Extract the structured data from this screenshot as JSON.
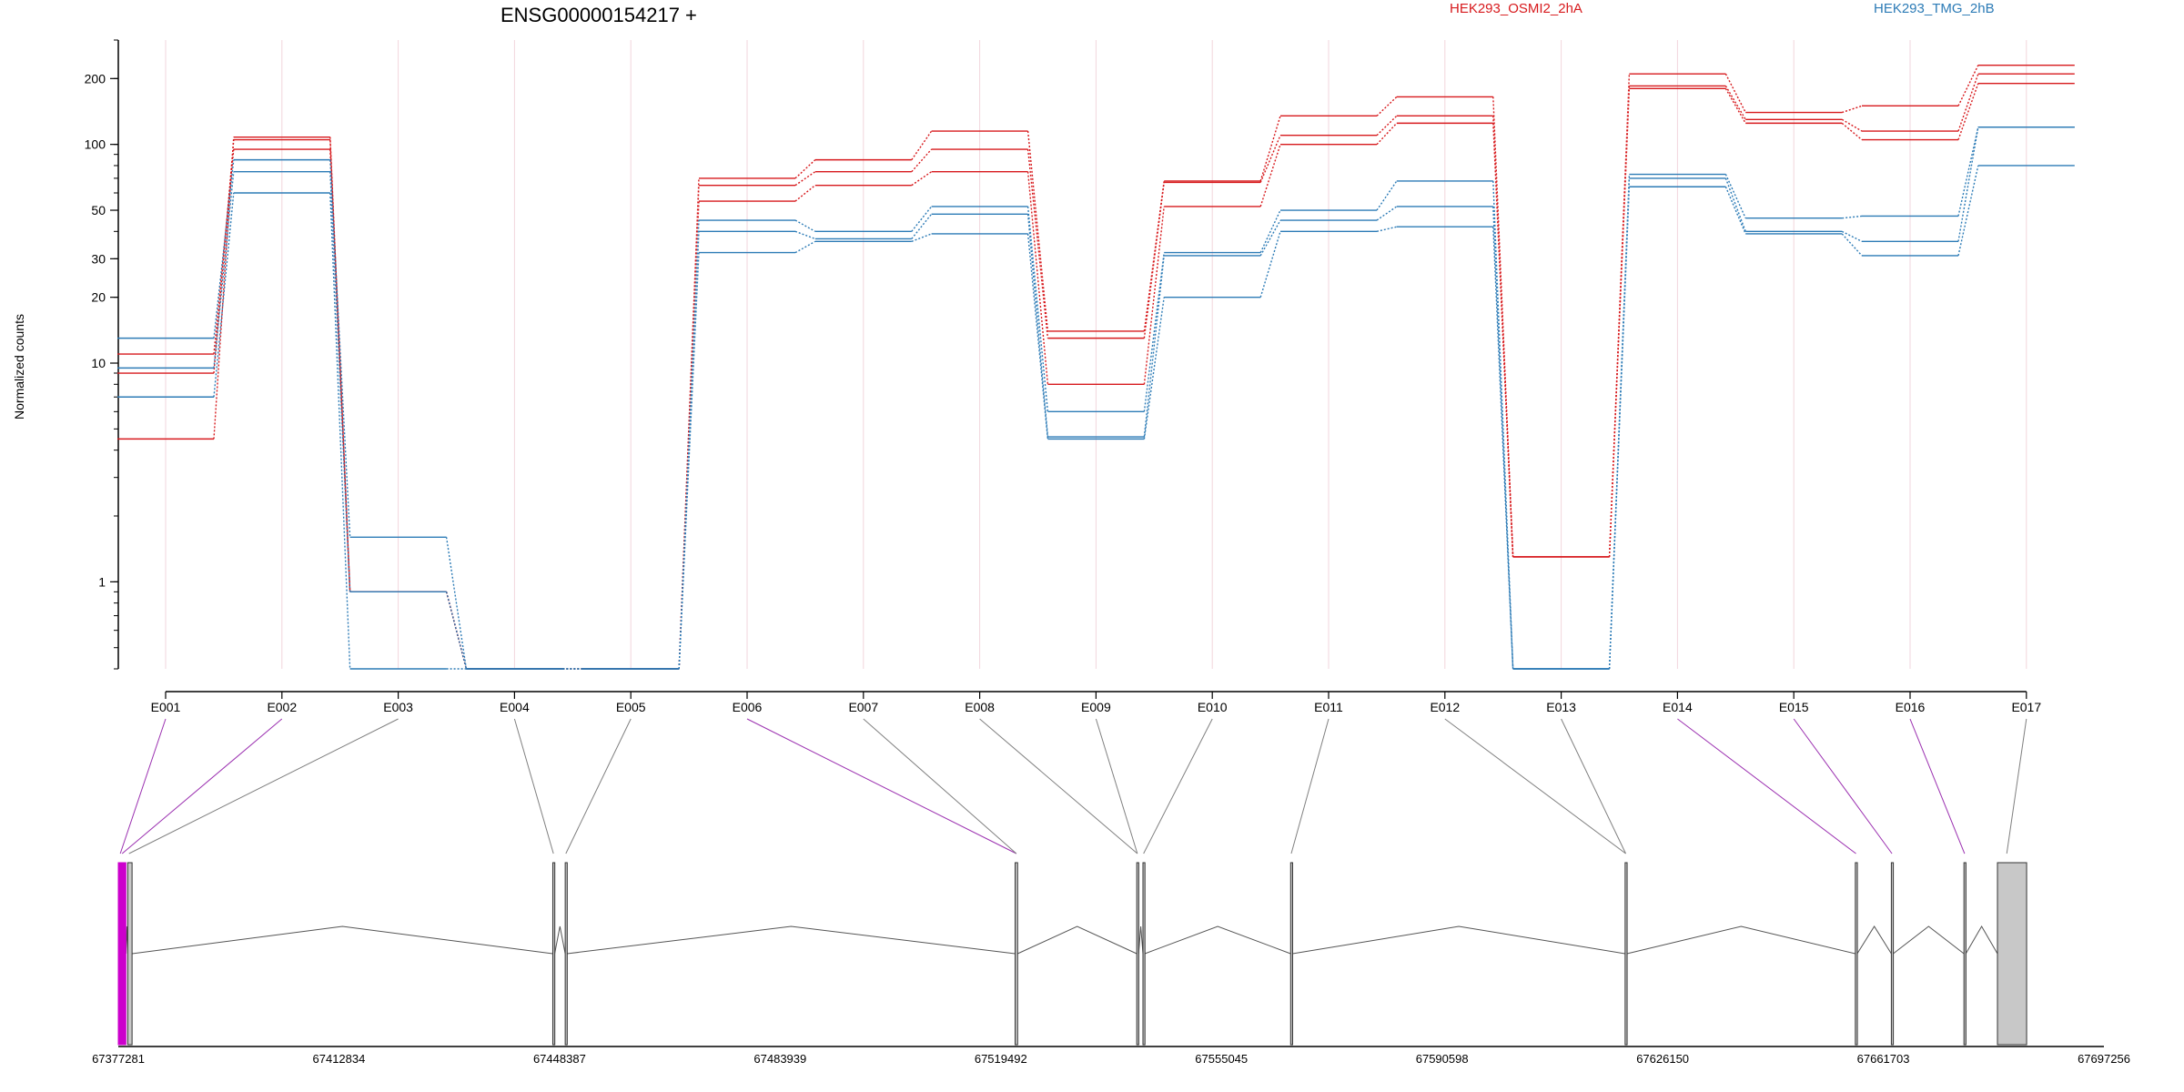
{
  "chart_data": {
    "type": "line",
    "title": "ENSG00000154217 +",
    "ylabel": "Normalized counts",
    "yscale": "log",
    "ylim": [
      0.4,
      300
    ],
    "yticks": [
      1,
      10,
      20,
      30,
      50,
      100,
      200
    ],
    "categories": [
      "E001",
      "E002",
      "E003",
      "E004",
      "E005",
      "E006",
      "E007",
      "E008",
      "E009",
      "E010",
      "E011",
      "E012",
      "E013",
      "E014",
      "E015",
      "E016",
      "E017"
    ],
    "groups": [
      {
        "name": "HEK293_OSMI2_2hA",
        "color": "#d7191c"
      },
      {
        "name": "HEK293_TMG_2hB",
        "color": "#2c7bb6"
      }
    ],
    "series": [
      {
        "group": 0,
        "values": [
          4.5,
          108,
          0.9,
          0.4,
          0.4,
          70,
          85,
          115,
          14,
          68,
          135,
          165,
          1.3,
          210,
          140,
          150,
          230
        ]
      },
      {
        "group": 0,
        "values": [
          9,
          105,
          0.9,
          0.4,
          0.4,
          65,
          75,
          95,
          13,
          67,
          110,
          135,
          1.3,
          185,
          130,
          115,
          210
        ]
      },
      {
        "group": 0,
        "values": [
          11,
          95,
          0.9,
          0.4,
          0.4,
          55,
          65,
          75,
          8,
          52,
          100,
          125,
          1.3,
          180,
          125,
          105,
          190
        ]
      },
      {
        "group": 1,
        "values": [
          13,
          85,
          1.6,
          0.4,
          0.4,
          45,
          40,
          52,
          6,
          32,
          50,
          68,
          0.4,
          73,
          46,
          47,
          120
        ]
      },
      {
        "group": 1,
        "values": [
          9.5,
          75,
          0.9,
          0.4,
          0.4,
          40,
          37,
          48,
          4.6,
          31,
          45,
          52,
          0.4,
          70,
          40,
          36,
          120
        ]
      },
      {
        "group": 1,
        "values": [
          7,
          60,
          0.4,
          0.4,
          0.4,
          32,
          36,
          39,
          4.5,
          20,
          40,
          42,
          0.4,
          64,
          39,
          31,
          80
        ]
      }
    ],
    "genomic_axis": {
      "range": [
        67377281,
        67697256
      ],
      "ticks": [
        "67377281",
        "67412834",
        "67448387",
        "67483939",
        "67519492",
        "67555045",
        "67590598",
        "67626150",
        "67661703",
        "67697256"
      ],
      "exons": [
        {
          "start": 67377281,
          "end": 67377900,
          "color": "#cc00cc"
        },
        {
          "start": 67377900,
          "end": 67378500,
          "color": "#cc00cc"
        },
        {
          "start": 67378800,
          "end": 67379500,
          "color": "#c8c8c8"
        },
        {
          "start": 67447300,
          "end": 67447600,
          "color": "#c8c8c8"
        },
        {
          "start": 67449300,
          "end": 67449600,
          "color": "#c8c8c8"
        },
        {
          "start": 67521800,
          "end": 67522200,
          "color": "#c8c8c8"
        },
        {
          "start": 67541400,
          "end": 67541700,
          "color": "#c8c8c8"
        },
        {
          "start": 67542400,
          "end": 67542700,
          "color": "#c8c8c8"
        },
        {
          "start": 67566200,
          "end": 67566500,
          "color": "#c8c8c8"
        },
        {
          "start": 67620100,
          "end": 67620400,
          "color": "#c8c8c8"
        },
        {
          "start": 67657200,
          "end": 67657500,
          "color": "#c8c8c8"
        },
        {
          "start": 67663000,
          "end": 67663300,
          "color": "#c8c8c8"
        },
        {
          "start": 67674700,
          "end": 67675000,
          "color": "#c8c8c8"
        },
        {
          "start": 67680100,
          "end": 67684800,
          "color": "#c8c8c8"
        }
      ],
      "bin_map": [
        {
          "bin": 0,
          "pos": 67377600,
          "color": "#9b30b0"
        },
        {
          "bin": 1,
          "pos": 67377900,
          "color": "#9b30b0"
        },
        {
          "bin": 2,
          "pos": 67379000,
          "color": "#808080"
        },
        {
          "bin": 3,
          "pos": 67447400,
          "color": "#808080"
        },
        {
          "bin": 4,
          "pos": 67449400,
          "color": "#808080"
        },
        {
          "bin": 5,
          "pos": 67522000,
          "color": "#9b30b0"
        },
        {
          "bin": 6,
          "pos": 67522000,
          "color": "#808080"
        },
        {
          "bin": 7,
          "pos": 67541500,
          "color": "#808080"
        },
        {
          "bin": 8,
          "pos": 67541500,
          "color": "#808080"
        },
        {
          "bin": 9,
          "pos": 67542500,
          "color": "#808080"
        },
        {
          "bin": 10,
          "pos": 67566300,
          "color": "#808080"
        },
        {
          "bin": 11,
          "pos": 67620200,
          "color": "#808080"
        },
        {
          "bin": 12,
          "pos": 67620200,
          "color": "#808080"
        },
        {
          "bin": 13,
          "pos": 67657300,
          "color": "#9b30b0"
        },
        {
          "bin": 14,
          "pos": 67663100,
          "color": "#9b30b0"
        },
        {
          "bin": 15,
          "pos": 67674800,
          "color": "#9b30b0"
        },
        {
          "bin": 16,
          "pos": 67681600,
          "color": "#808080"
        }
      ]
    }
  }
}
